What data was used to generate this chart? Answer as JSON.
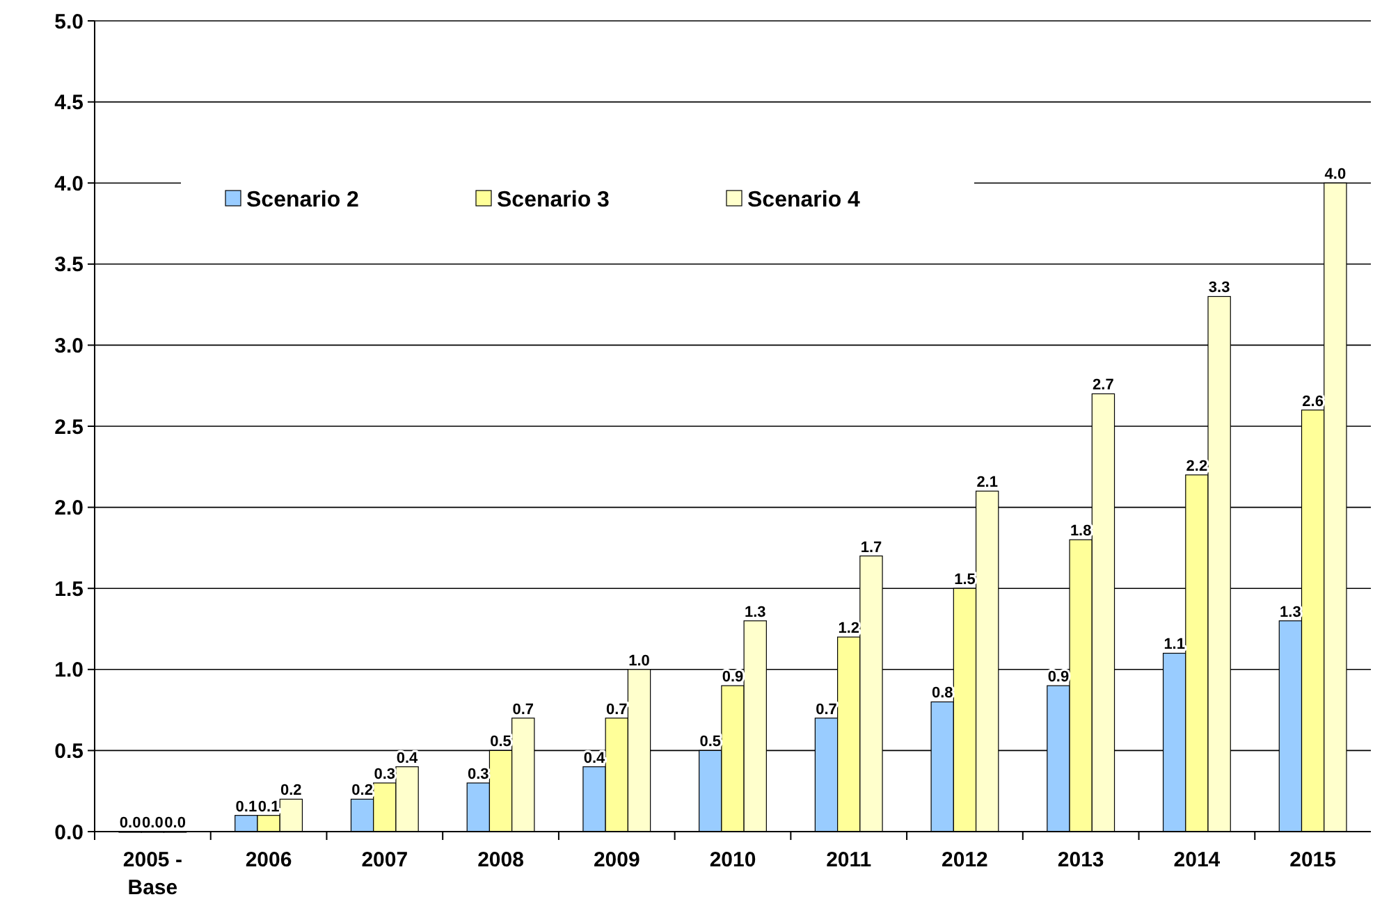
{
  "chart_data": {
    "type": "bar",
    "categories": [
      "2005 - Base",
      "2006",
      "2007",
      "2008",
      "2009",
      "2010",
      "2011",
      "2012",
      "2013",
      "2014",
      "2015"
    ],
    "series": [
      {
        "name": "Scenario 2",
        "color": "#99ccff",
        "values": [
          0,
          0.1,
          0.2,
          0.3,
          0.4,
          0.5,
          0.7,
          0.8,
          0.9,
          1.1,
          1.3
        ],
        "value_labels": [
          "0.0",
          "0.1",
          "0.2",
          "0.3",
          "0.4",
          "0.5",
          "0.7",
          "0.8",
          "0.9",
          "1.1",
          "1.3"
        ]
      },
      {
        "name": "Scenario 3",
        "color": "#ffff99",
        "values": [
          0,
          0.1,
          0.3,
          0.5,
          0.7,
          0.9,
          1.2,
          1.5,
          1.8,
          2.2,
          2.6
        ],
        "value_labels": [
          "0.0",
          "0.1",
          "0.3",
          "0.5",
          "0.7",
          "0.9",
          "1.2",
          "1.5",
          "1.8",
          "2.2",
          "2.6"
        ]
      },
      {
        "name": "Scenario 4",
        "color": "#ffffcc",
        "values": [
          0,
          0.2,
          0.4,
          0.7,
          1.0,
          1.3,
          1.7,
          2.1,
          2.7,
          3.3,
          4.0
        ],
        "value_labels": [
          "0.0",
          "0.2",
          "0.4",
          "0.7",
          "1.0",
          "1.3",
          "1.7",
          "2.1",
          "2.7",
          "3.3",
          "4.0"
        ]
      }
    ],
    "ylim": [
      0,
      5
    ],
    "yticks": [
      {
        "value": 0,
        "label": "0.0"
      },
      {
        "value": 0.5,
        "label": "0.5"
      },
      {
        "value": 1,
        "label": "1.0"
      },
      {
        "value": 1.5,
        "label": "1.5"
      },
      {
        "value": 2,
        "label": "2.0"
      },
      {
        "value": 2.5,
        "label": "2.5"
      },
      {
        "value": 3,
        "label": "3.0"
      },
      {
        "value": 3.5,
        "label": "3.5"
      },
      {
        "value": 4,
        "label": "4.0"
      },
      {
        "value": 4.5,
        "label": "4.5"
      },
      {
        "value": 5,
        "label": "5.0"
      }
    ],
    "grid": "y",
    "legend": "top"
  }
}
